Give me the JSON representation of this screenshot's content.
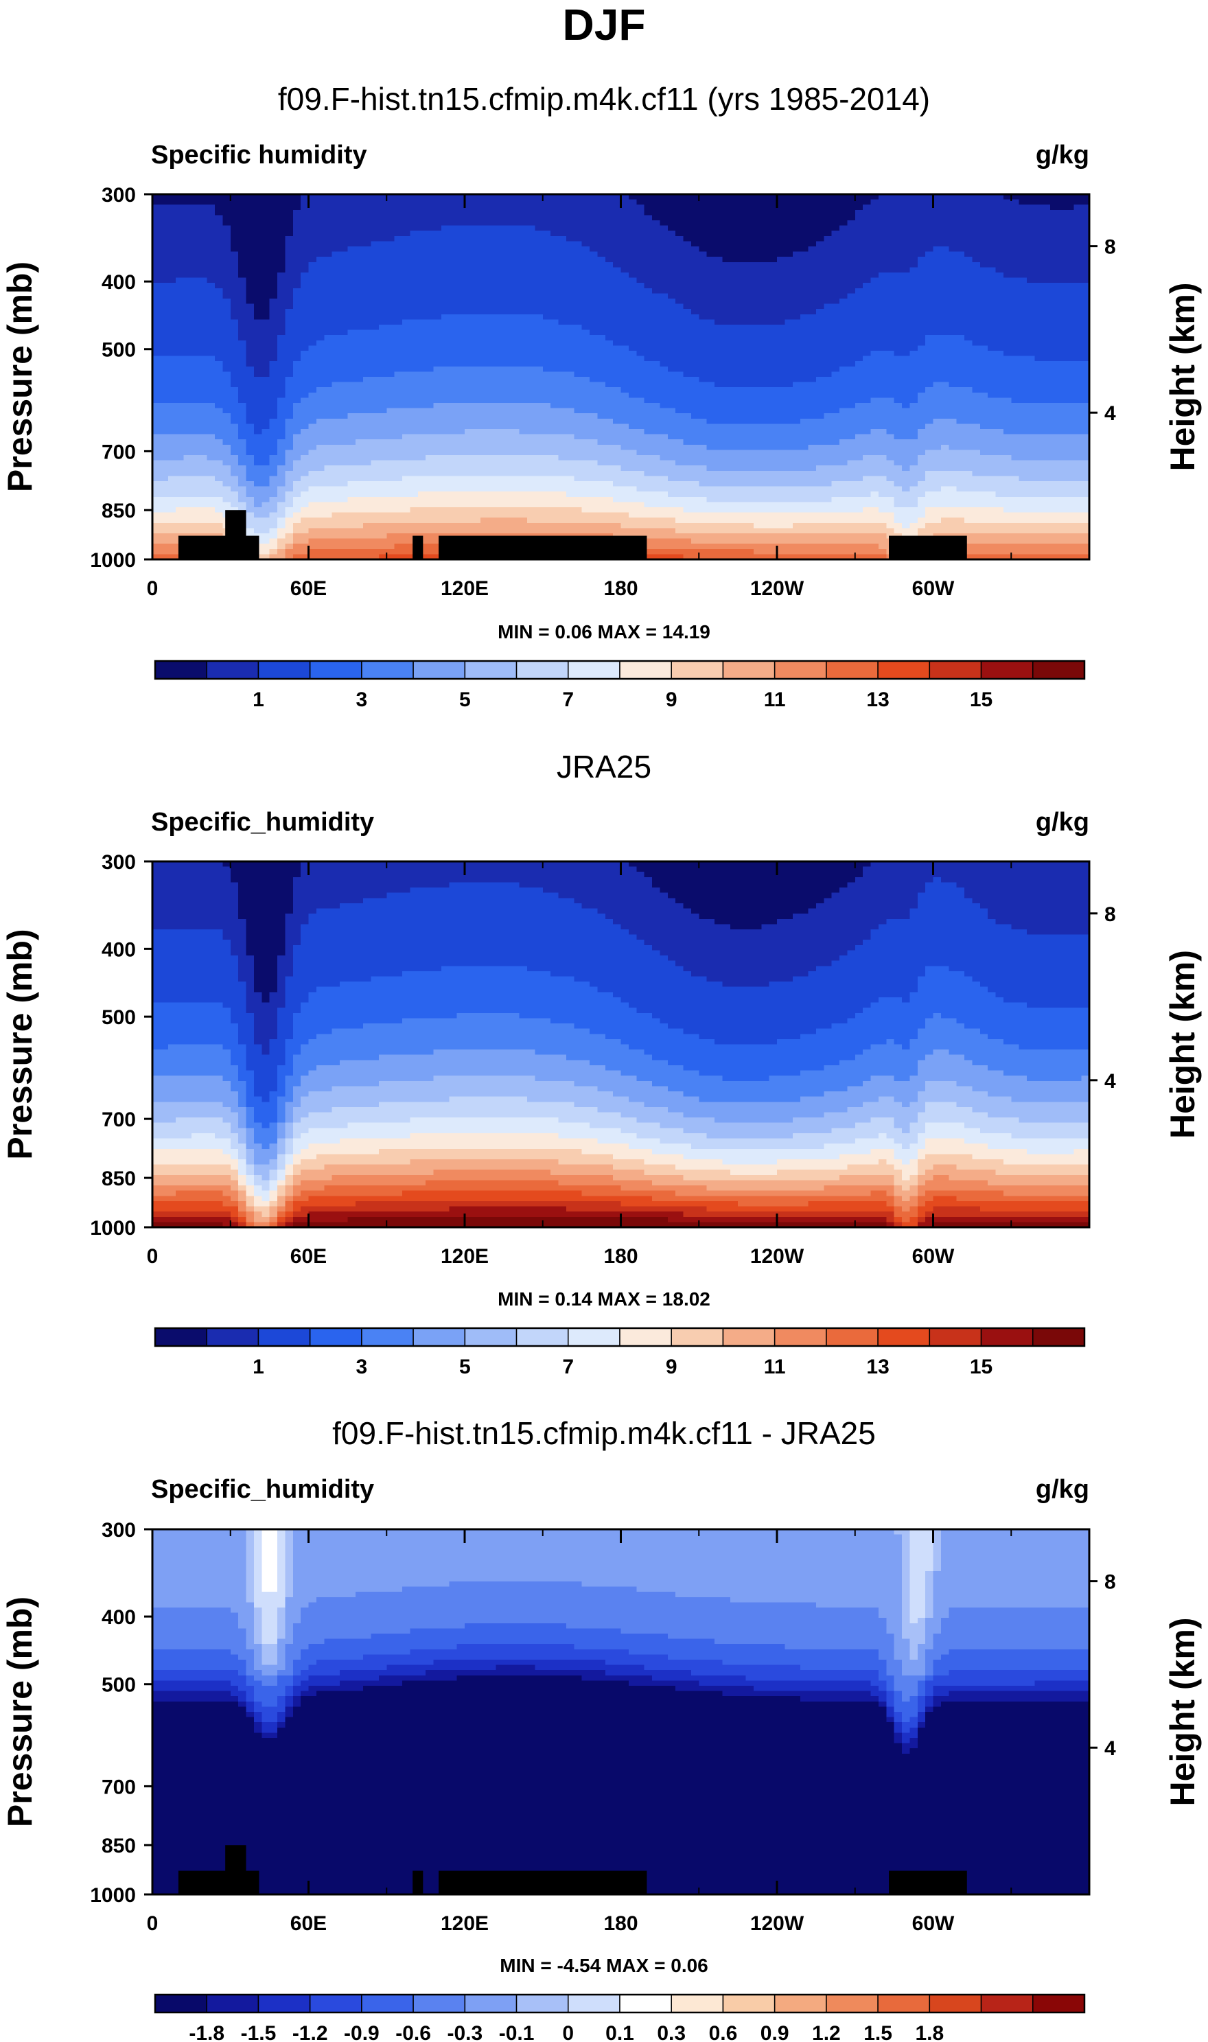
{
  "title": "DJF",
  "colors": {
    "qv_palette": [
      "#0a0c6c",
      "#1a2cb0",
      "#1c48d8",
      "#2a64ee",
      "#4a82f4",
      "#7aa2f6",
      "#9fbcf8",
      "#c2d6fa",
      "#ddeafc",
      "#fbeadc",
      "#f8cdb0",
      "#f4ac88",
      "#f08a60",
      "#ea6a3c",
      "#e44a1e",
      "#c8321a",
      "#9a1010",
      "#7a0808"
    ],
    "diff_palette": [
      "#08096a",
      "#13199e",
      "#1c30c6",
      "#2a4ade",
      "#3a64ea",
      "#5a82f0",
      "#7ea0f4",
      "#a8c0f8",
      "#cfdefc",
      "#ffffff",
      "#fde8d4",
      "#f9cca8",
      "#f4aa80",
      "#ef8a5c",
      "#e86a3c",
      "#d8461e",
      "#b82418",
      "#8a0606"
    ],
    "land": "#000000"
  },
  "chart_data": [
    {
      "type": "heatmap",
      "name": "model",
      "title": "f09.F-hist.tn15.cfmip.m4k.cf11 (yrs 1985-2014)",
      "left_label": "Specific humidity",
      "units": "g/kg",
      "ylabel": "Pressure (mb)",
      "y2label": "Height (km)",
      "x_ticks": [
        "0",
        "60E",
        "120E",
        "180",
        "120W",
        "60W"
      ],
      "x_tick_positions_deg": [
        0,
        60,
        120,
        180,
        240,
        300
      ],
      "x_range_deg": [
        0,
        360
      ],
      "y_ticks": [
        "300",
        "400",
        "500",
        "700",
        "850",
        "1000"
      ],
      "y_ticks_values": [
        300,
        400,
        500,
        700,
        850,
        1000
      ],
      "y_range_mb": [
        300,
        1000
      ],
      "y2_ticks": [
        "8",
        "4"
      ],
      "y2_ticks_values_km": [
        8,
        4
      ],
      "min_label": "MIN =",
      "min_value": "0.06",
      "max_label": "MAX =",
      "max_value": "14.19",
      "colorbar_levels": [
        0.5,
        1,
        2,
        3,
        4,
        5,
        6,
        7,
        8,
        9,
        10,
        11,
        12,
        13,
        14,
        15,
        16
      ],
      "colorbar_labels": [
        "1",
        "3",
        "5",
        "7",
        "9",
        "11",
        "13",
        "15"
      ],
      "colorbar_label_levels": [
        1,
        3,
        5,
        7,
        9,
        11,
        13,
        15
      ]
    },
    {
      "type": "heatmap",
      "name": "obs",
      "title": "JRA25",
      "left_label": "Specific_humidity",
      "units": "g/kg",
      "ylabel": "Pressure (mb)",
      "y2label": "Height (km)",
      "x_ticks": [
        "0",
        "60E",
        "120E",
        "180",
        "120W",
        "60W"
      ],
      "x_tick_positions_deg": [
        0,
        60,
        120,
        180,
        240,
        300
      ],
      "x_range_deg": [
        0,
        360
      ],
      "y_ticks": [
        "300",
        "400",
        "500",
        "700",
        "850",
        "1000"
      ],
      "y_ticks_values": [
        300,
        400,
        500,
        700,
        850,
        1000
      ],
      "y_range_mb": [
        300,
        1000
      ],
      "y2_ticks": [
        "8",
        "4"
      ],
      "y2_ticks_values_km": [
        8,
        4
      ],
      "min_label": "MIN =",
      "min_value": "0.14",
      "max_label": "MAX =",
      "max_value": "18.02",
      "colorbar_levels": [
        0.5,
        1,
        2,
        3,
        4,
        5,
        6,
        7,
        8,
        9,
        10,
        11,
        12,
        13,
        14,
        15,
        16
      ],
      "colorbar_labels": [
        "1",
        "3",
        "5",
        "7",
        "9",
        "11",
        "13",
        "15"
      ],
      "colorbar_label_levels": [
        1,
        3,
        5,
        7,
        9,
        11,
        13,
        15
      ]
    },
    {
      "type": "heatmap",
      "name": "diff",
      "title": "f09.F-hist.tn15.cfmip.m4k.cf11 - JRA25",
      "left_label": "Specific_humidity",
      "units": "g/kg",
      "ylabel": "Pressure (mb)",
      "y2label": "Height (km)",
      "x_ticks": [
        "0",
        "60E",
        "120E",
        "180",
        "120W",
        "60W"
      ],
      "x_tick_positions_deg": [
        0,
        60,
        120,
        180,
        240,
        300
      ],
      "x_range_deg": [
        0,
        360
      ],
      "y_ticks": [
        "300",
        "400",
        "500",
        "700",
        "850",
        "1000"
      ],
      "y_ticks_values": [
        300,
        400,
        500,
        700,
        850,
        1000
      ],
      "y_range_mb": [
        300,
        1000
      ],
      "y2_ticks": [
        "8",
        "4"
      ],
      "y2_ticks_values_km": [
        8,
        4
      ],
      "min_label": "MIN =",
      "min_value": "-4.54",
      "max_label": "MAX =",
      "max_value": "0.06",
      "colorbar_levels": [
        -1.8,
        -1.5,
        -1.2,
        -0.9,
        -0.6,
        -0.3,
        -0.1,
        0,
        0.1,
        0.3,
        0.6,
        0.9,
        1.2,
        1.5,
        1.8
      ],
      "colorbar_labels": [
        "-1.8",
        "-1.5",
        "-1.2",
        "-0.9",
        "-0.6",
        "-0.3",
        "-0.1",
        "0",
        "0.1",
        "0.3",
        "0.6",
        "0.9",
        "1.2",
        "1.5",
        "1.8"
      ],
      "colorbar_label_levels": [
        -1.8,
        -1.5,
        -1.2,
        -0.9,
        -0.6,
        -0.3,
        -0.1,
        0,
        0.1,
        0.3,
        0.6,
        0.9,
        1.2,
        1.5,
        1.8
      ]
    }
  ]
}
